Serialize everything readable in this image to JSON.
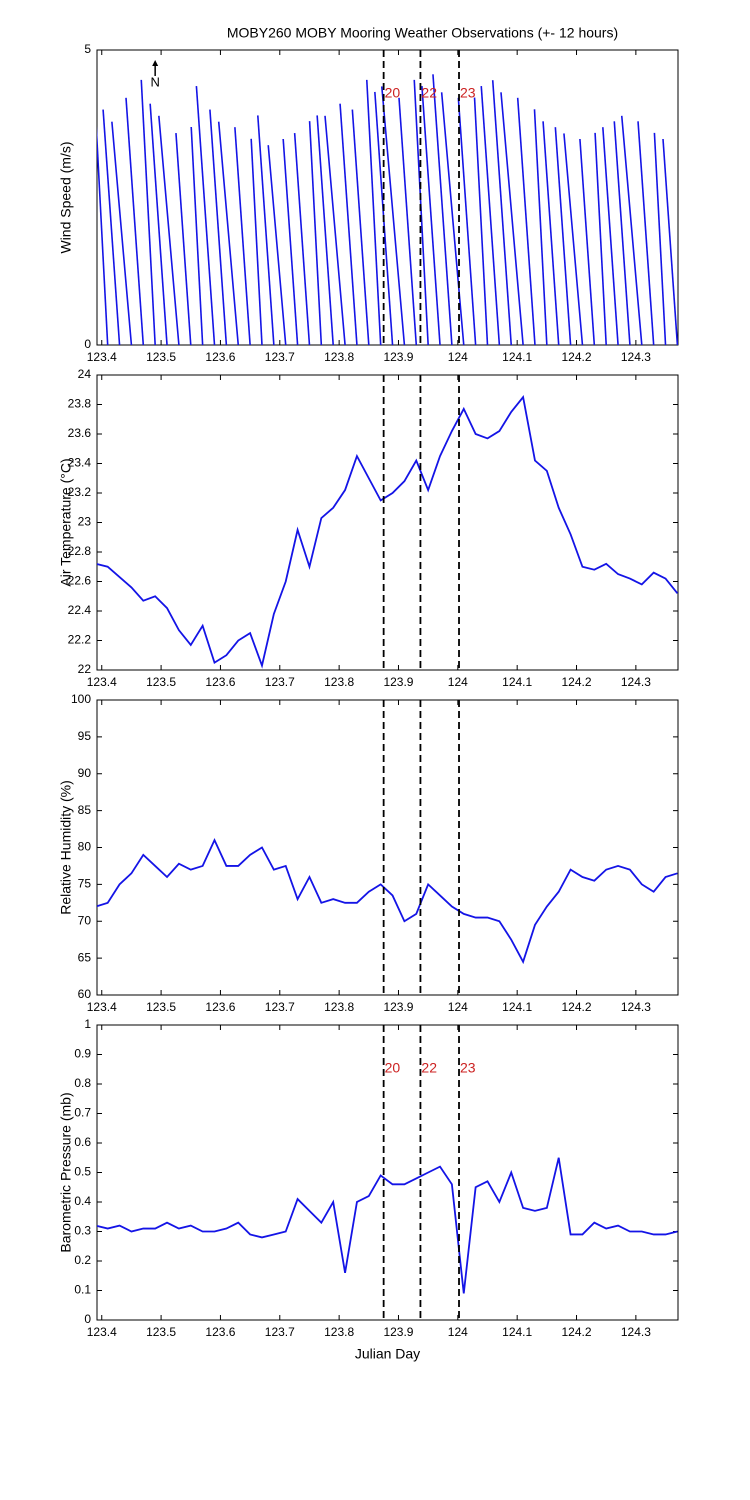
{
  "chart_data": [
    {
      "type": "stick",
      "title": "MOBY260 MOBY Mooring Weather Observations (+- 12 hours)",
      "y_label": "Wind Speed (m/s)",
      "x": [
        123.39,
        123.41,
        123.43,
        123.45,
        123.47,
        123.49,
        123.51,
        123.53,
        123.55,
        123.57,
        123.59,
        123.61,
        123.63,
        123.65,
        123.67,
        123.69,
        123.71,
        123.73,
        123.75,
        123.77,
        123.79,
        123.81,
        123.83,
        123.85,
        123.87,
        123.89,
        123.91,
        123.93,
        123.95,
        123.97,
        123.99,
        124.01,
        124.03,
        124.05,
        124.07,
        124.09,
        124.11,
        124.13,
        124.15,
        124.17,
        124.19,
        124.21,
        124.23,
        124.25,
        124.27,
        124.29,
        124.31,
        124.33,
        124.35,
        124.37
      ],
      "series": [
        {
          "color": "#1414e6",
          "values": [
            4.3,
            4.4,
            4.0,
            3.8,
            4.2,
            4.5,
            4.1,
            3.9,
            3.6,
            3.7,
            4.4,
            4.0,
            3.8,
            3.7,
            3.5,
            3.9,
            3.4,
            3.5,
            3.6,
            3.8,
            3.9,
            3.9,
            4.1,
            4.0,
            4.5,
            4.3,
            4.4,
            4.2,
            4.5,
            4.4,
            4.6,
            4.3,
            4.2,
            4.2,
            4.4,
            4.5,
            4.3,
            4.2,
            4.0,
            3.8,
            3.7,
            3.6,
            3.5,
            3.6,
            3.7,
            3.8,
            3.9,
            3.8,
            3.6,
            3.5
          ],
          "direction": [
            356,
            357,
            356,
            355,
            356,
            357,
            356,
            355,
            356,
            357,
            356,
            356,
            355,
            356,
            357,
            356,
            355,
            356,
            356,
            357,
            356,
            355,
            356,
            356,
            357,
            356,
            355,
            356,
            357,
            356,
            356,
            355,
            356,
            357,
            356,
            356,
            355,
            356,
            357,
            356,
            356,
            355,
            356,
            357,
            356,
            356,
            355,
            356,
            357,
            356
          ]
        }
      ],
      "xlim": [
        123.392,
        124.371
      ],
      "xticks": [
        123.4,
        123.5,
        123.6,
        123.7,
        123.8,
        123.9,
        124,
        124.1,
        124.2,
        124.3
      ],
      "ylim": [
        0,
        5
      ],
      "yticks": [
        0,
        5
      ],
      "north_arrow": {
        "x": 123.49,
        "label": "N"
      },
      "vlines": [
        123.875,
        123.937,
        124.002
      ],
      "annotations": [
        {
          "x": 123.875,
          "label": "20"
        },
        {
          "x": 123.937,
          "label": "22"
        },
        {
          "x": 124.002,
          "label": "23"
        }
      ]
    },
    {
      "type": "line",
      "y_label": "Air Temperature (°C)",
      "x": [
        123.39,
        123.41,
        123.43,
        123.45,
        123.47,
        123.49,
        123.51,
        123.53,
        123.55,
        123.57,
        123.59,
        123.61,
        123.63,
        123.65,
        123.67,
        123.69,
        123.71,
        123.73,
        123.75,
        123.77,
        123.79,
        123.81,
        123.83,
        123.85,
        123.87,
        123.89,
        123.91,
        123.93,
        123.95,
        123.97,
        123.99,
        124.01,
        124.03,
        124.05,
        124.07,
        124.09,
        124.11,
        124.13,
        124.15,
        124.17,
        124.19,
        124.21,
        124.23,
        124.25,
        124.27,
        124.29,
        124.31,
        124.33,
        124.35,
        124.37
      ],
      "series": [
        {
          "color": "#1414e6",
          "values": [
            22.72,
            22.7,
            22.63,
            22.56,
            22.47,
            22.5,
            22.42,
            22.27,
            22.17,
            22.3,
            22.05,
            22.1,
            22.2,
            22.25,
            22.03,
            22.38,
            22.6,
            22.95,
            22.7,
            23.03,
            23.1,
            23.22,
            23.45,
            23.3,
            23.15,
            23.2,
            23.28,
            23.42,
            23.22,
            23.45,
            23.62,
            23.77,
            23.6,
            23.57,
            23.62,
            23.75,
            23.85,
            23.42,
            23.35,
            23.1,
            22.92,
            22.7,
            22.68,
            22.72,
            22.65,
            22.62,
            22.58,
            22.66,
            22.62,
            22.52
          ]
        }
      ],
      "xlim": [
        123.392,
        124.371
      ],
      "xticks": [
        123.4,
        123.5,
        123.6,
        123.7,
        123.8,
        123.9,
        124,
        124.1,
        124.2,
        124.3
      ],
      "ylim": [
        22,
        24
      ],
      "yticks": [
        22,
        22.2,
        22.4,
        22.6,
        22.8,
        23,
        23.2,
        23.4,
        23.6,
        23.8,
        24
      ],
      "vlines": [
        123.875,
        123.937,
        124.002
      ]
    },
    {
      "type": "line",
      "y_label": "Relative Humidity (%)",
      "x": [
        123.39,
        123.41,
        123.43,
        123.45,
        123.47,
        123.49,
        123.51,
        123.53,
        123.55,
        123.57,
        123.59,
        123.61,
        123.63,
        123.65,
        123.67,
        123.69,
        123.71,
        123.73,
        123.75,
        123.77,
        123.79,
        123.81,
        123.83,
        123.85,
        123.87,
        123.89,
        123.91,
        123.93,
        123.95,
        123.97,
        123.99,
        124.01,
        124.03,
        124.05,
        124.07,
        124.09,
        124.11,
        124.13,
        124.15,
        124.17,
        124.19,
        124.21,
        124.23,
        124.25,
        124.27,
        124.29,
        124.31,
        124.33,
        124.35,
        124.37
      ],
      "series": [
        {
          "color": "#1414e6",
          "values": [
            72,
            72.5,
            75,
            76.5,
            79,
            77.5,
            76,
            77.8,
            77,
            77.5,
            81,
            77.5,
            77.5,
            79,
            80,
            77,
            77.5,
            73,
            76,
            72.5,
            73,
            72.5,
            72.5,
            74,
            75,
            73.5,
            70,
            71,
            75,
            73.5,
            72,
            71,
            70.5,
            70.5,
            70,
            67.5,
            64.5,
            69.5,
            72,
            74,
            77,
            76,
            75.5,
            77,
            77.5,
            77,
            75,
            74,
            76,
            76.5
          ]
        }
      ],
      "xlim": [
        123.392,
        124.371
      ],
      "xticks": [
        123.4,
        123.5,
        123.6,
        123.7,
        123.8,
        123.9,
        124,
        124.1,
        124.2,
        124.3
      ],
      "ylim": [
        60,
        100
      ],
      "yticks": [
        60,
        65,
        70,
        75,
        80,
        85,
        90,
        95,
        100
      ],
      "vlines": [
        123.875,
        123.937,
        124.002
      ]
    },
    {
      "type": "line",
      "y_label": "Barometric Pressure (mb)",
      "x_label": "Julian Day",
      "x": [
        123.39,
        123.41,
        123.43,
        123.45,
        123.47,
        123.49,
        123.51,
        123.53,
        123.55,
        123.57,
        123.59,
        123.61,
        123.63,
        123.65,
        123.67,
        123.69,
        123.71,
        123.73,
        123.75,
        123.77,
        123.79,
        123.81,
        123.83,
        123.85,
        123.87,
        123.89,
        123.91,
        123.93,
        123.95,
        123.97,
        123.99,
        124.01,
        124.03,
        124.05,
        124.07,
        124.09,
        124.11,
        124.13,
        124.15,
        124.17,
        124.19,
        124.21,
        124.23,
        124.25,
        124.27,
        124.29,
        124.31,
        124.33,
        124.35,
        124.37
      ],
      "series": [
        {
          "color": "#1414e6",
          "values": [
            0.32,
            0.31,
            0.32,
            0.3,
            0.31,
            0.31,
            0.33,
            0.31,
            0.32,
            0.3,
            0.3,
            0.31,
            0.33,
            0.29,
            0.28,
            0.29,
            0.3,
            0.41,
            0.37,
            0.33,
            0.4,
            0.16,
            0.4,
            0.42,
            0.49,
            0.46,
            0.46,
            0.48,
            0.5,
            0.52,
            0.46,
            0.09,
            0.45,
            0.47,
            0.4,
            0.5,
            0.38,
            0.37,
            0.38,
            0.55,
            0.29,
            0.29,
            0.33,
            0.31,
            0.32,
            0.3,
            0.3,
            0.29,
            0.29,
            0.3
          ]
        }
      ],
      "xlim": [
        123.392,
        124.371
      ],
      "xticks": [
        123.4,
        123.5,
        123.6,
        123.7,
        123.8,
        123.9,
        124,
        124.1,
        124.2,
        124.3
      ],
      "ylim": [
        0,
        1
      ],
      "yticks": [
        0,
        0.1,
        0.2,
        0.3,
        0.4,
        0.5,
        0.6,
        0.7,
        0.8,
        0.9,
        1
      ],
      "vlines": [
        123.875,
        123.937,
        124.002
      ],
      "annotations": [
        {
          "x": 123.875,
          "label": "20"
        },
        {
          "x": 123.937,
          "label": "22"
        },
        {
          "x": 124.002,
          "label": "23"
        }
      ]
    }
  ]
}
